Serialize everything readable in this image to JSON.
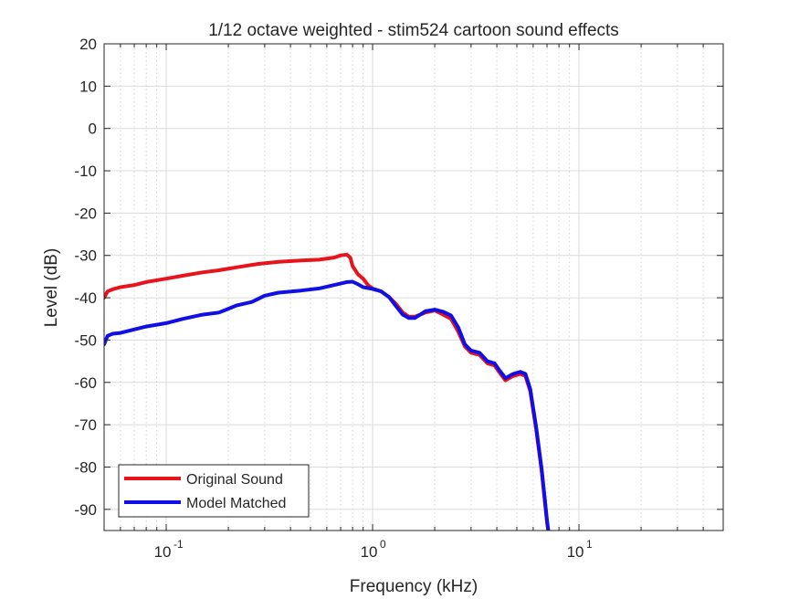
{
  "chart_data": {
    "type": "line",
    "title": "1/12 octave weighted - stim524 cartoon sound effects",
    "xlabel": "Frequency (kHz)",
    "ylabel": "Level (dB)",
    "xscale": "log",
    "xlim": [
      0.05,
      50
    ],
    "ylim": [
      -95,
      20
    ],
    "grid": true,
    "minor_grid": true,
    "legend_position": "bottom-left",
    "x_ticks": [
      {
        "value": 0.1,
        "base": "10",
        "exp": "-1"
      },
      {
        "value": 1,
        "base": "10",
        "exp": "0"
      },
      {
        "value": 10,
        "base": "10",
        "exp": "1"
      }
    ],
    "y_ticks": [
      20,
      10,
      0,
      -10,
      -20,
      -30,
      -40,
      -50,
      -60,
      -70,
      -80,
      -90
    ],
    "series": [
      {
        "name": "Original Sound",
        "color": "#e8141b",
        "points": [
          [
            0.05,
            -40
          ],
          [
            0.052,
            -38.5
          ],
          [
            0.055,
            -38
          ],
          [
            0.06,
            -37.5
          ],
          [
            0.07,
            -37
          ],
          [
            0.08,
            -36.3
          ],
          [
            0.1,
            -35.5
          ],
          [
            0.12,
            -34.8
          ],
          [
            0.15,
            -34
          ],
          [
            0.18,
            -33.5
          ],
          [
            0.22,
            -32.8
          ],
          [
            0.28,
            -32
          ],
          [
            0.35,
            -31.5
          ],
          [
            0.45,
            -31.2
          ],
          [
            0.55,
            -31
          ],
          [
            0.65,
            -30.5
          ],
          [
            0.7,
            -30
          ],
          [
            0.75,
            -29.8
          ],
          [
            0.78,
            -30.5
          ],
          [
            0.8,
            -32.5
          ],
          [
            0.85,
            -34.5
          ],
          [
            0.9,
            -35.5
          ],
          [
            0.95,
            -37
          ],
          [
            1.0,
            -37.8
          ],
          [
            1.1,
            -38.5
          ],
          [
            1.2,
            -39.8
          ],
          [
            1.3,
            -41.5
          ],
          [
            1.4,
            -43.5
          ],
          [
            1.5,
            -44.5
          ],
          [
            1.6,
            -44.5
          ],
          [
            1.7,
            -44
          ],
          [
            1.8,
            -43.5
          ],
          [
            2.0,
            -43
          ],
          [
            2.2,
            -44
          ],
          [
            2.4,
            -45
          ],
          [
            2.6,
            -48
          ],
          [
            2.8,
            -51.5
          ],
          [
            3.0,
            -53
          ],
          [
            3.3,
            -53.5
          ],
          [
            3.6,
            -55.5
          ],
          [
            3.9,
            -56
          ],
          [
            4.1,
            -57.5
          ],
          [
            4.4,
            -59.5
          ],
          [
            4.8,
            -58.5
          ],
          [
            5.2,
            -58
          ],
          [
            5.5,
            -58.5
          ],
          [
            5.8,
            -62
          ],
          [
            6.2,
            -71
          ],
          [
            6.6,
            -81
          ],
          [
            7.0,
            -93
          ],
          [
            7.1,
            -95
          ]
        ]
      },
      {
        "name": "Model Matched",
        "color": "#0f0fe6",
        "points": [
          [
            0.05,
            -51
          ],
          [
            0.052,
            -49
          ],
          [
            0.055,
            -48.5
          ],
          [
            0.06,
            -48.3
          ],
          [
            0.07,
            -47.5
          ],
          [
            0.08,
            -46.8
          ],
          [
            0.1,
            -46
          ],
          [
            0.12,
            -45
          ],
          [
            0.15,
            -44
          ],
          [
            0.18,
            -43.5
          ],
          [
            0.22,
            -41.8
          ],
          [
            0.26,
            -41
          ],
          [
            0.3,
            -39.5
          ],
          [
            0.35,
            -38.8
          ],
          [
            0.45,
            -38.3
          ],
          [
            0.55,
            -37.8
          ],
          [
            0.65,
            -37
          ],
          [
            0.75,
            -36.3
          ],
          [
            0.8,
            -36.2
          ],
          [
            0.85,
            -36.8
          ],
          [
            0.9,
            -37.5
          ],
          [
            1.0,
            -37.9
          ],
          [
            1.1,
            -38.5
          ],
          [
            1.2,
            -39.8
          ],
          [
            1.3,
            -42
          ],
          [
            1.4,
            -44
          ],
          [
            1.5,
            -44.8
          ],
          [
            1.6,
            -44.8
          ],
          [
            1.7,
            -44
          ],
          [
            1.8,
            -43.2
          ],
          [
            2.0,
            -42.8
          ],
          [
            2.2,
            -43.3
          ],
          [
            2.4,
            -44.2
          ],
          [
            2.6,
            -47
          ],
          [
            2.8,
            -51
          ],
          [
            3.0,
            -52.5
          ],
          [
            3.3,
            -53
          ],
          [
            3.6,
            -55
          ],
          [
            3.9,
            -55.5
          ],
          [
            4.1,
            -57
          ],
          [
            4.4,
            -59
          ],
          [
            4.8,
            -58
          ],
          [
            5.2,
            -57.5
          ],
          [
            5.5,
            -58
          ],
          [
            5.8,
            -61.5
          ],
          [
            6.2,
            -70.5
          ],
          [
            6.6,
            -80.5
          ],
          [
            7.0,
            -92.5
          ],
          [
            7.1,
            -95
          ]
        ]
      }
    ]
  }
}
